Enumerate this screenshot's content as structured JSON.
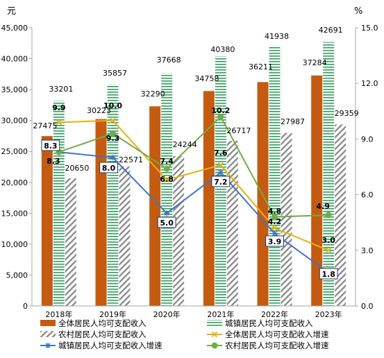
{
  "chart_data": {
    "type": "bar",
    "left_axis_unit": "元",
    "right_axis_unit": "%",
    "categories": [
      "2018年",
      "2019年",
      "2020年",
      "2021年",
      "2022年",
      "2023年"
    ],
    "left_ticks": [
      "0",
      "5,000",
      "10,000",
      "15,000",
      "20,000",
      "25,000",
      "30,000",
      "35,000",
      "40,000",
      "45,000"
    ],
    "right_ticks": [
      "0.0",
      "3.0",
      "6.0",
      "9.0",
      "12.0",
      "15.0"
    ],
    "ylim_left": [
      0,
      45000
    ],
    "ylim_right": [
      0,
      15
    ],
    "bar_series": [
      {
        "name": "全体居民人均可支配收入",
        "color": "#C55A11",
        "pattern": "solid",
        "values": [
          27475,
          30223,
          32290,
          34758,
          36211,
          37284
        ],
        "labels": [
          "27475",
          "30223",
          "32290",
          "34758",
          "36211",
          "37284"
        ]
      },
      {
        "name": "城镇居民人均可支配收入",
        "color": "#2E9E5B",
        "pattern": "horizontal-lines",
        "values": [
          33201,
          35857,
          37668,
          40380,
          41938,
          42691
        ],
        "labels": [
          "33201",
          "35857",
          "37668",
          "40380",
          "41938",
          "42691"
        ]
      },
      {
        "name": "农村居民人均可支配收入",
        "color": "#8C8C8C",
        "pattern": "diagonal-lines",
        "values": [
          20650,
          22571,
          24244,
          26717,
          27987,
          29359
        ],
        "labels": [
          "20650",
          "22571",
          "24244",
          "26717",
          "27987",
          "29359"
        ]
      }
    ],
    "line_series": [
      {
        "name": "全体居民人均可支配收入增速",
        "color": "#E8B010",
        "marker": "x",
        "values": [
          9.9,
          10.0,
          6.8,
          7.6,
          4.2,
          3.0
        ],
        "labels": [
          "9.9",
          "10.0",
          "6.8",
          "7.6",
          "4.2",
          "3.0"
        ]
      },
      {
        "name": "城镇居民人均可支配收入增速",
        "color": "#4472C4",
        "marker": "star",
        "values": [
          8.3,
          8.0,
          5.0,
          7.2,
          3.9,
          1.8
        ],
        "labels": [
          "8.3",
          "8.0",
          "5.0",
          "7.2",
          "3.9",
          "1.8"
        ]
      },
      {
        "name": "农村居民人均可支配收入增速",
        "color": "#70AD47",
        "marker": "circle",
        "values": [
          8.3,
          9.3,
          7.4,
          10.2,
          4.8,
          4.9
        ],
        "labels": [
          "8.3",
          "9.3",
          "7.4",
          "10.2",
          "4.8",
          "4.9"
        ]
      }
    ],
    "legend_position": "bottom",
    "grid": false
  }
}
